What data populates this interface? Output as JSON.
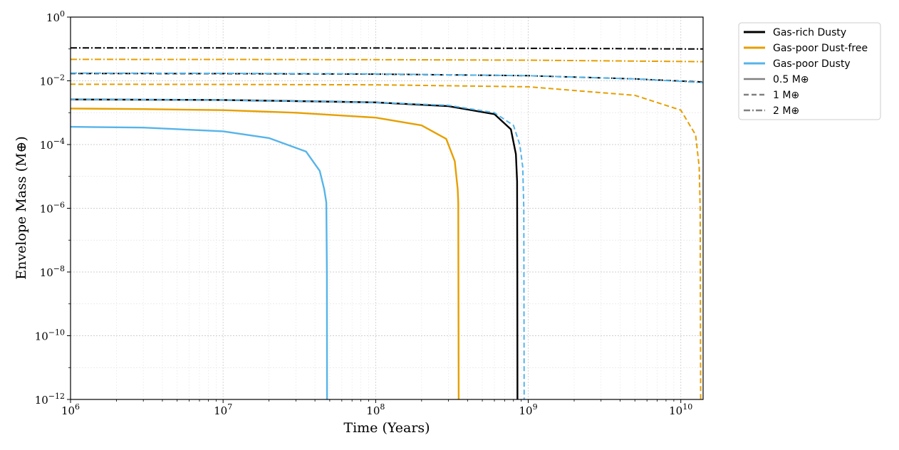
{
  "chart_data": {
    "type": "line",
    "xlabel": "Time (Years)",
    "ylabel": "Envelope Mass (M⊕)",
    "xscale": "log",
    "yscale": "log",
    "xlim": [
      1000000,
      14000000000
    ],
    "ylim": [
      1e-12,
      1
    ],
    "grid": true,
    "legend_position": "outside-right-top",
    "x_ticks": [
      {
        "base": "10",
        "exp": "6"
      },
      {
        "base": "10",
        "exp": "7"
      },
      {
        "base": "10",
        "exp": "8"
      },
      {
        "base": "10",
        "exp": "9"
      },
      {
        "base": "10",
        "exp": "10"
      }
    ],
    "y_ticks": [
      {
        "base": "10",
        "exp": "0"
      },
      {
        "base": "10",
        "exp": "−2"
      },
      {
        "base": "10",
        "exp": "−4"
      },
      {
        "base": "10",
        "exp": "−6"
      },
      {
        "base": "10",
        "exp": "−8"
      },
      {
        "base": "10",
        "exp": "−10"
      },
      {
        "base": "10",
        "exp": "−12"
      }
    ],
    "legend": {
      "colors": [
        {
          "label": "Gas-rich Dusty",
          "color": "#000000"
        },
        {
          "label": "Gas-poor Dust-free",
          "color": "#E69F00"
        },
        {
          "label": "Gas-poor Dusty",
          "color": "#56B4E9"
        }
      ],
      "styles": [
        {
          "label": "0.5 M⊕",
          "dash": "solid"
        },
        {
          "label": "1 M⊕",
          "dash": "dashed"
        },
        {
          "label": "2 M⊕",
          "dash": "dashdot"
        }
      ]
    },
    "series": [
      {
        "name": "Gas-poor Dusty, 0.5 M⊕",
        "color": "#56B4E9",
        "dash": "solid",
        "x": [
          1000000,
          3000000,
          10000000,
          20000000,
          35000000,
          43000000,
          46000000,
          47500000,
          47900000,
          48000000
        ],
        "y": [
          0.00036,
          0.00034,
          0.00026,
          0.00016,
          6e-05,
          1.5e-05,
          4e-06,
          1.5e-06,
          1e-08,
          1e-12
        ]
      },
      {
        "name": "Gas-poor Dust-free, 0.5 M⊕",
        "color": "#E69F00",
        "dash": "solid",
        "x": [
          1000000,
          3000000,
          10000000,
          30000000,
          100000000,
          200000000,
          290000000,
          330000000,
          345000000,
          348000000,
          350000000
        ],
        "y": [
          0.00135,
          0.0013,
          0.0012,
          0.001,
          0.0007,
          0.0004,
          0.00015,
          3e-05,
          4e-06,
          1.5e-06,
          1e-12
        ]
      },
      {
        "name": "Gas-rich Dusty, 0.5 M⊕",
        "color": "#000000",
        "dash": "solid",
        "x": [
          1000000,
          10000000,
          100000000,
          300000000,
          600000000,
          770000000,
          830000000,
          845000000,
          848000000,
          850000000
        ],
        "y": [
          0.0026,
          0.0025,
          0.0021,
          0.0016,
          0.0009,
          0.0003,
          5e-05,
          7e-06,
          1e-08,
          1e-12
        ]
      },
      {
        "name": "Gas-poor Dusty, 1 M⊕",
        "color": "#56B4E9",
        "dash": "dashed",
        "x": [
          1000000,
          10000000,
          100000000,
          300000000,
          600000000,
          800000000,
          880000000,
          920000000,
          935000000,
          940000000
        ],
        "y": [
          0.0026,
          0.0025,
          0.0021,
          0.0017,
          0.001,
          0.0004,
          0.0001,
          2e-05,
          1e-06,
          1e-12
        ]
      },
      {
        "name": "Gas-rich Dusty, 1 M⊕",
        "color": "#000000",
        "dash": "dashed",
        "x": [
          1000000,
          10000000,
          100000000,
          1000000000,
          5000000000,
          14000000000
        ],
        "y": [
          0.017,
          0.0168,
          0.0162,
          0.0145,
          0.0115,
          0.0091
        ]
      },
      {
        "name": "Gas-poor Dust-free, 1 M⊕",
        "color": "#E69F00",
        "dash": "dashed",
        "x": [
          1000000,
          10000000,
          100000000,
          1000000000,
          5000000000,
          10000000000,
          12500000000,
          13200000000,
          13400000000,
          13500000000
        ],
        "y": [
          0.0078,
          0.0077,
          0.0075,
          0.0065,
          0.0035,
          0.0012,
          0.0002,
          2e-05,
          1e-06,
          1e-12
        ]
      },
      {
        "name": "Gas-poor Dusty, 2 M⊕",
        "color": "#56B4E9",
        "dash": "dashdot",
        "x": [
          1000000,
          10000000,
          100000000,
          1000000000,
          5000000000,
          14000000000
        ],
        "y": [
          0.0175,
          0.0172,
          0.0165,
          0.0145,
          0.0115,
          0.0088
        ]
      },
      {
        "name": "Gas-poor Dust-free, 2 M⊕",
        "color": "#E69F00",
        "dash": "dashdot",
        "x": [
          1000000,
          10000000,
          100000000,
          1000000000,
          14000000000
        ],
        "y": [
          0.047,
          0.0468,
          0.0462,
          0.0445,
          0.04
        ]
      },
      {
        "name": "Gas-rich Dusty, 2 M⊕",
        "color": "#000000",
        "dash": "dashdot",
        "x": [
          1000000,
          10000000,
          100000000,
          1000000000,
          14000000000
        ],
        "y": [
          0.108,
          0.1075,
          0.107,
          0.105,
          0.1
        ]
      }
    ]
  }
}
